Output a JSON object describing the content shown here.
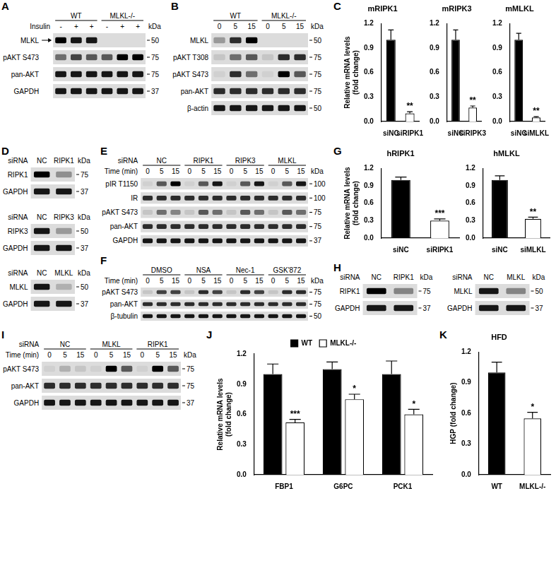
{
  "panels": [
    {
      "letter": "A",
      "blots": [
        {
          "groups": [
            "WT",
            "MLKL-/-"
          ],
          "lane_row": {
            "label": "Insulin",
            "lanes": [
              "-",
              "+",
              "+",
              "-",
              "+",
              "+"
            ]
          },
          "kda_label": "kDa",
          "bands": [
            {
              "label": "MLKL",
              "arrow": true,
              "kda": 50,
              "signal": [
                1,
                0.9,
                0.9,
                0,
                0,
                0
              ]
            },
            {
              "label": "pAKT S473",
              "kda": 75,
              "signal": [
                0.5,
                0.7,
                0.6,
                0.6,
                1,
                1
              ]
            },
            {
              "label": "pan-AKT",
              "kda": 75,
              "signal": [
                0.9,
                0.9,
                0.9,
                0.9,
                0.9,
                0.9
              ]
            },
            {
              "label": "GAPDH",
              "kda": 37,
              "signal": [
                0.9,
                0.9,
                0.9,
                0.9,
                0.9,
                0.9
              ]
            }
          ]
        }
      ]
    },
    {
      "letter": "B",
      "blots": [
        {
          "groups": [
            "WT",
            "MLKL-/-"
          ],
          "lane_row": {
            "lanes": [
              "0",
              "5",
              "15",
              "0",
              "5",
              "15"
            ]
          },
          "kda_label": "kDa",
          "bands": [
            {
              "label": "MLKL",
              "kda": 50,
              "signal": [
                0.3,
                0.8,
                1,
                0,
                0,
                0
              ]
            },
            {
              "label": "pAKT T308",
              "kda": 75,
              "signal": [
                0.1,
                0.5,
                0.6,
                0.1,
                0.8,
                0.8
              ]
            },
            {
              "label": "pAKT S473",
              "kda": 75,
              "signal": [
                0.05,
                0.8,
                0.5,
                0.05,
                1,
                0.6
              ]
            },
            {
              "label": "pan-AKT",
              "kda": 75,
              "signal": [
                0.8,
                0.8,
                0.8,
                0.8,
                0.8,
                0.8
              ]
            },
            {
              "label": "β-actin",
              "kda": 50,
              "signal": [
                0.9,
                0.9,
                0.9,
                0.9,
                0.9,
                0.9
              ]
            }
          ]
        }
      ]
    },
    {
      "letter": "D",
      "blots": [
        {
          "lane_row": {
            "label": "siRNA",
            "lanes": [
              "NC",
              "RIPK1"
            ]
          },
          "kda_label": "kDa",
          "bands": [
            {
              "label": "RIPK1",
              "kda": 75,
              "signal": [
                1,
                0.35
              ]
            },
            {
              "label": "GAPDH",
              "kda": 37,
              "signal": [
                0.9,
                0.9
              ]
            }
          ]
        },
        {
          "lane_row": {
            "label": "siRNA",
            "lanes": [
              "NC",
              "RIPK3"
            ]
          },
          "kda_label": "kDa",
          "bands": [
            {
              "label": "RIPK3",
              "kda": 50,
              "signal": [
                0.9,
                0.3
              ]
            },
            {
              "label": "GAPDH",
              "kda": 37,
              "signal": [
                0.9,
                0.9
              ]
            }
          ]
        },
        {
          "lane_row": {
            "label": "siRNA",
            "lanes": [
              "NC",
              "MLKL"
            ]
          },
          "kda_label": "kDa",
          "bands": [
            {
              "label": "MLKL",
              "kda": 50,
              "signal": [
                0.9,
                0.2
              ]
            },
            {
              "label": "GAPDH",
              "kda": 37,
              "signal": [
                0.9,
                0.9
              ]
            }
          ]
        }
      ]
    },
    {
      "letter": "E",
      "blots": [
        {
          "groups": [
            "NC",
            "RIPK1",
            "RIPK3",
            "MLKL"
          ],
          "group_label": "siRNA",
          "lane_row": {
            "label": "Time (min)",
            "lanes": [
              "0",
              "5",
              "15",
              "0",
              "5",
              "15",
              "0",
              "5",
              "15",
              "0",
              "5",
              "15"
            ]
          },
          "kda_label": "kDa",
          "bands": [
            {
              "label": "pIR T1150",
              "kda": 100,
              "signal": [
                0.05,
                0.6,
                1,
                0.05,
                0.6,
                0.9,
                0.05,
                0.6,
                0.9,
                0.05,
                0.6,
                0.9
              ]
            },
            {
              "label": "IR",
              "kda": 100,
              "signal": [
                0.8,
                0.8,
                0.8,
                0.8,
                0.8,
                0.8,
                0.8,
                0.8,
                0.8,
                0.8,
                0.8,
                0.8
              ]
            },
            {
              "label": "pAKT S473",
              "kda": 75,
              "signal": [
                0.1,
                0.5,
                0.4,
                0.1,
                0.6,
                0.5,
                0.1,
                0.6,
                0.5,
                0.1,
                0.6,
                0.5
              ]
            },
            {
              "label": "pan-AKT",
              "kda": 75,
              "signal": [
                0.8,
                0.8,
                0.8,
                0.8,
                0.8,
                0.8,
                0.8,
                0.8,
                0.8,
                0.8,
                0.8,
                0.8
              ]
            },
            {
              "label": "GAPDH",
              "kda": 37,
              "signal": [
                0.9,
                0.9,
                0.9,
                0.9,
                0.9,
                0.9,
                0.9,
                0.9,
                0.9,
                0.9,
                0.9,
                0.9
              ]
            }
          ]
        }
      ]
    },
    {
      "letter": "F",
      "blots": [
        {
          "groups": [
            "DMSO",
            "NSA",
            "Nec-1",
            "GSK'872"
          ],
          "lane_row": {
            "label": "Time (min)",
            "lanes": [
              "0",
              "5",
              "15",
              "0",
              "5",
              "15",
              "0",
              "5",
              "15",
              "0",
              "5",
              "15"
            ]
          },
          "kda_label": "kDa",
          "bands": [
            {
              "label": "pAKT S473",
              "kda": 75,
              "signal": [
                0.1,
                0.7,
                0.7,
                0.1,
                0.8,
                0.7,
                0.1,
                0.8,
                0.7,
                0.1,
                0.8,
                0.8
              ]
            },
            {
              "label": "pan-AKT",
              "kda": 75,
              "signal": [
                0.8,
                0.8,
                0.8,
                0.8,
                0.8,
                0.8,
                0.8,
                0.8,
                0.8,
                0.8,
                0.8,
                0.8
              ]
            },
            {
              "label": "β-tubulin",
              "kda": 50,
              "signal": [
                0.9,
                0.9,
                0.9,
                0.9,
                0.9,
                0.9,
                0.9,
                0.9,
                0.9,
                0.9,
                0.9,
                0.9
              ]
            }
          ]
        }
      ]
    },
    {
      "letter": "H",
      "blots": [
        {
          "lane_row": {
            "label": "siRNA",
            "lanes": [
              "NC",
              "RIPK1"
            ]
          },
          "kda_label": "kDa",
          "bands": [
            {
              "label": "RIPK1",
              "kda": 75,
              "signal": [
                1,
                0.4
              ]
            },
            {
              "label": "GAPDH",
              "kda": 37,
              "signal": [
                0.9,
                0.9
              ]
            }
          ]
        },
        {
          "lane_row": {
            "label": "siRNA",
            "lanes": [
              "NC",
              "MLKL"
            ]
          },
          "kda_label": "kDa",
          "bands": [
            {
              "label": "MLKL",
              "kda": 50,
              "signal": [
                0.9,
                0.4
              ]
            },
            {
              "label": "GAPDH",
              "kda": 37,
              "signal": [
                0.9,
                0.9
              ]
            }
          ]
        }
      ]
    },
    {
      "letter": "I",
      "blots": [
        {
          "groups": [
            "NC",
            "MLKL",
            "RIPK1"
          ],
          "group_label": "siRNA",
          "lane_row": {
            "label": "Time (min)",
            "lanes": [
              "0",
              "5",
              "15",
              "0",
              "5",
              "15",
              "0",
              "5",
              "15"
            ]
          },
          "kda_label": "kDa",
          "bands": [
            {
              "label": "pAKT S473",
              "kda": 75,
              "signal": [
                0.05,
                0.2,
                0.1,
                0.05,
                1,
                0.6,
                0.05,
                1,
                0.6
              ]
            },
            {
              "label": "pan-AKT",
              "kda": 75,
              "signal": [
                0.8,
                0.8,
                0.8,
                0.8,
                0.8,
                0.8,
                0.8,
                0.8,
                0.8
              ]
            },
            {
              "label": "GAPDH",
              "kda": 37,
              "signal": [
                0.9,
                0.9,
                0.9,
                0.9,
                0.9,
                0.9,
                0.9,
                0.9,
                0.9
              ]
            }
          ]
        }
      ]
    }
  ],
  "chart_data": [
    {
      "panel": "C",
      "type": "bar",
      "title": "mRIPK1",
      "ylabel": [
        "Relative mRNA levels",
        "(fold change)"
      ],
      "categories": [
        "siNC",
        "siRIPK1"
      ],
      "values": [
        1.0,
        0.1
      ],
      "errors": [
        0.12,
        0.02
      ],
      "significance": [
        null,
        "**"
      ],
      "colors": [
        "#000000",
        "#ffffff"
      ],
      "ylim": [
        0,
        1.2
      ],
      "yticks": [
        {
          "value": 0,
          "label": "0.0"
        },
        0.3,
        0.6,
        0.9,
        1.2
      ],
      "grid": false
    },
    {
      "panel": "C",
      "type": "bar",
      "title": "mRIPK3",
      "categories": [
        "siNC",
        "siRIPK3"
      ],
      "values": [
        1.0,
        0.17
      ],
      "errors": [
        0.12,
        0.02
      ],
      "significance": [
        null,
        "**"
      ],
      "colors": [
        "#000000",
        "#ffffff"
      ],
      "ylim": [
        0,
        1.2
      ],
      "yticks": [
        {
          "value": 0,
          "label": "0.0"
        },
        0.3,
        0.6,
        0.9,
        1.2
      ],
      "grid": false
    },
    {
      "panel": "C",
      "type": "bar",
      "title": "mMLKL",
      "categories": [
        "siNC",
        "siMLKL"
      ],
      "values": [
        1.0,
        0.05
      ],
      "errors": [
        0.08,
        0.01
      ],
      "significance": [
        null,
        "**"
      ],
      "colors": [
        "#000000",
        "#ffffff"
      ],
      "ylim": [
        0,
        1.2
      ],
      "yticks": [
        {
          "value": 0,
          "label": "0.0"
        },
        0.3,
        0.6,
        0.9,
        1.2
      ],
      "grid": false
    },
    {
      "panel": "G",
      "type": "bar",
      "title": "hRIPK1",
      "ylabel": [
        "Relative mRNA levels",
        "(fold change)"
      ],
      "categories": [
        "siNC",
        "siRIPK1"
      ],
      "values": [
        1.0,
        0.3
      ],
      "errors": [
        0.05,
        0.03
      ],
      "significance": [
        null,
        "***"
      ],
      "colors": [
        "#000000",
        "#ffffff"
      ],
      "ylim": [
        0,
        1.2
      ],
      "yticks": [
        {
          "value": 0,
          "label": "0.0"
        },
        0.3,
        0.6,
        0.9,
        1.2
      ],
      "grid": false
    },
    {
      "panel": "G",
      "type": "bar",
      "title": "hMLKL",
      "categories": [
        "siNC",
        "siMLKL"
      ],
      "values": [
        1.0,
        0.33
      ],
      "errors": [
        0.07,
        0.03
      ],
      "significance": [
        null,
        "**"
      ],
      "colors": [
        "#000000",
        "#ffffff"
      ],
      "ylim": [
        0,
        1.2
      ],
      "yticks": [
        {
          "value": 0,
          "label": "0.0"
        },
        0.3,
        0.6,
        0.9,
        1.2
      ],
      "grid": false
    },
    {
      "panel": "J",
      "type": "bar",
      "ylabel": [
        "Relative mRNA levels",
        "(fold change)"
      ],
      "categories": [
        "FBP1",
        "G6PC",
        "PCK1"
      ],
      "series": [
        {
          "name": "WT",
          "color": "#000000",
          "values": [
            1.0,
            1.05,
            1.0
          ],
          "errors": [
            0.1,
            0.07,
            0.13
          ]
        },
        {
          "name": "MLKL-/-",
          "color": "#ffffff",
          "values": [
            0.52,
            0.75,
            0.6
          ],
          "errors": [
            0.03,
            0.05,
            0.05
          ],
          "significance": [
            "***",
            "*",
            "*"
          ]
        }
      ],
      "legend": "top",
      "ylim": [
        0,
        1.2
      ],
      "yticks": [
        {
          "value": 0,
          "label": "0.0"
        },
        0.3,
        0.6,
        0.9,
        1.2
      ],
      "grid": false
    },
    {
      "panel": "K",
      "type": "bar",
      "title": "HFD",
      "ylabel": [
        "HGP (fold change)"
      ],
      "categories": [
        "WT",
        "MLKL-/-"
      ],
      "values": [
        1.0,
        0.55
      ],
      "errors": [
        0.1,
        0.06
      ],
      "significance": [
        null,
        "*"
      ],
      "colors": [
        "#000000",
        "#ffffff"
      ],
      "ylim": [
        0,
        1.2
      ],
      "yticks": [
        {
          "value": 0,
          "label": "0.0"
        },
        0.3,
        0.6,
        0.9,
        1.2
      ],
      "grid": false
    }
  ]
}
